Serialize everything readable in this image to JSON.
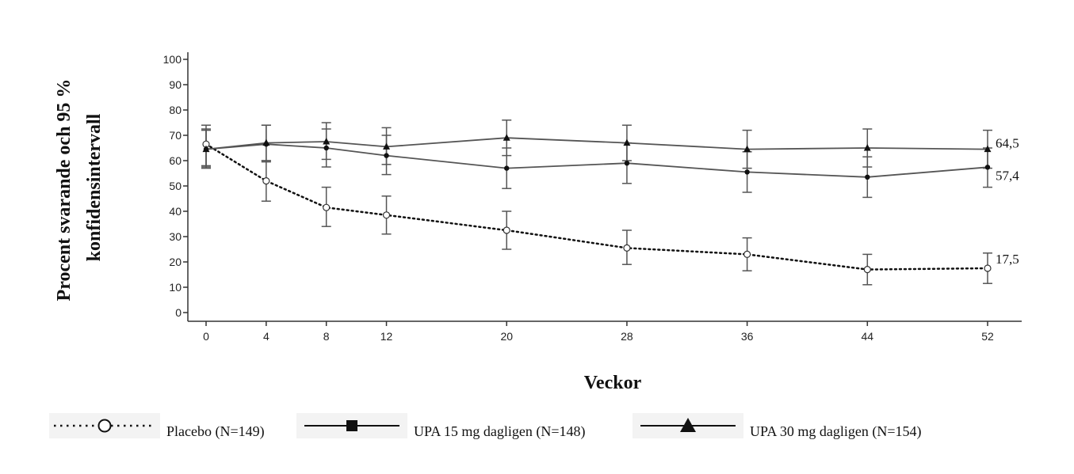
{
  "chart_data": {
    "type": "line",
    "title": "",
    "xlabel": "Veckor",
    "ylabel_lines": [
      "Procent svarande och 95 %",
      "konfidensintervall"
    ],
    "xlim": [
      -1,
      54
    ],
    "ylim": [
      -2,
      102
    ],
    "x_ticks": [
      0,
      4,
      8,
      12,
      20,
      28,
      36,
      44,
      52
    ],
    "y_ticks": [
      0,
      10,
      20,
      30,
      40,
      50,
      60,
      70,
      80,
      90,
      100
    ],
    "grid": false,
    "legend_position": "bottom",
    "series": [
      {
        "name": "Placebo (N=149)",
        "key": "placebo",
        "marker": "open-circle",
        "line_style": "dotted",
        "x": [
          0,
          4,
          8,
          12,
          20,
          28,
          36,
          44,
          52
        ],
        "values": [
          66.5,
          52,
          41.5,
          38.5,
          32.5,
          25.5,
          23,
          17,
          17.5
        ],
        "lower": [
          58,
          44,
          34,
          31,
          25,
          19,
          16.5,
          11,
          11.5
        ],
        "upper": [
          74,
          60,
          49.5,
          46,
          40,
          32.5,
          29.5,
          23,
          23.5
        ],
        "end_label": "17,5"
      },
      {
        "name": "UPA 15 mg dagligen (N=148)",
        "key": "upa15",
        "marker": "filled-square",
        "line_style": "solid",
        "x": [
          0,
          4,
          8,
          12,
          20,
          28,
          36,
          44,
          52
        ],
        "values": [
          64.5,
          66.5,
          65,
          62,
          57,
          59,
          55.5,
          53.5,
          57.4
        ],
        "lower": [
          57,
          59.5,
          57.5,
          54.5,
          49,
          51,
          47.5,
          45.5,
          49.5
        ],
        "upper": [
          72.5,
          74,
          72.5,
          70,
          65,
          67,
          63.5,
          61.5,
          65
        ],
        "end_label": "57,4"
      },
      {
        "name": "UPA 30 mg  dagligen (N=154)",
        "key": "upa30",
        "marker": "filled-triangle",
        "line_style": "solid",
        "x": [
          0,
          4,
          8,
          12,
          20,
          28,
          36,
          44,
          52
        ],
        "values": [
          64.5,
          67,
          67.5,
          65.5,
          69,
          67,
          64.5,
          65,
          64.5
        ],
        "lower": [
          57.5,
          60,
          60.5,
          58.5,
          62,
          60,
          57,
          57.5,
          57
        ],
        "upper": [
          72,
          74,
          75,
          73,
          76,
          74,
          72,
          72.5,
          72
        ],
        "end_label": "64,5"
      }
    ]
  },
  "legend": {
    "items": [
      {
        "key": "placebo",
        "label": "Placebo (N=149)"
      },
      {
        "key": "upa15",
        "label": "UPA 15 mg dagligen (N=148)"
      },
      {
        "key": "upa30",
        "label": "UPA 30 mg  dagligen (N=154)"
      }
    ]
  },
  "colors": {
    "placebo_line": "#111111",
    "upa15_line": "#555555",
    "upa30_line": "#555555",
    "error_bar": "#555555",
    "marker_fill": "#111111",
    "open_marker_fill": "#ffffff",
    "axis": "#333333"
  }
}
